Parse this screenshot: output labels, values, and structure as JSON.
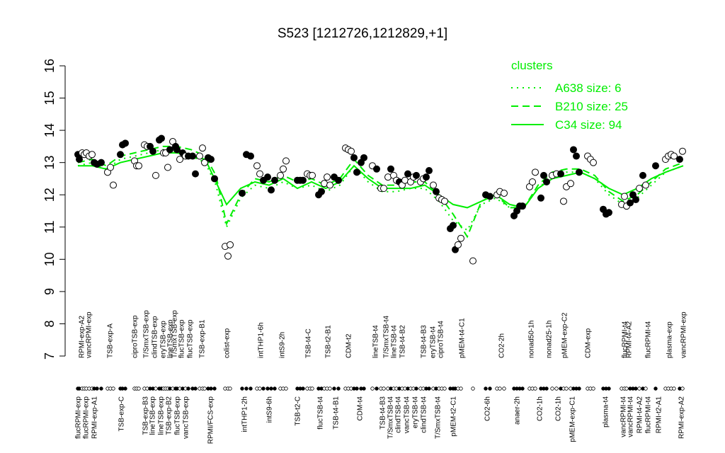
{
  "chart_data": {
    "type": "scatter",
    "title": "S523 [1212726,1212829,+1]",
    "xlim": [
      100,
      970
    ],
    "ylim": [
      7,
      16
    ],
    "yticks": [
      7,
      8,
      9,
      10,
      11,
      12,
      13,
      14,
      15,
      16
    ],
    "xticks": [
      {
        "value": 110,
        "label": "flucRPMI-exp"
      },
      {
        "value": 121,
        "label": "flucRPMI-exp"
      },
      {
        "value": 133,
        "label": "RPMI-exp-A1"
      },
      {
        "value": 171,
        "label": "TSB-exp-C"
      },
      {
        "value": 205,
        "label": "TSB-exp-B3"
      },
      {
        "value": 215,
        "label": "lineTSB-exp"
      },
      {
        "value": 227,
        "label": "lineTSB-exp"
      },
      {
        "value": 238,
        "label": "TSB-exp-B2"
      },
      {
        "value": 250,
        "label": "flucTSB-exp"
      },
      {
        "value": 262,
        "label": "vancTSB-exp"
      },
      {
        "value": 297,
        "label": "RPMI/FCS-exp"
      },
      {
        "value": 345,
        "label": "intTHP1-2h"
      },
      {
        "value": 380,
        "label": "intS9-6h"
      },
      {
        "value": 420,
        "label": "TSB-t2-C"
      },
      {
        "value": 452,
        "label": "flucTSB-t4"
      },
      {
        "value": 474,
        "label": "TSB-t4-B1"
      },
      {
        "value": 508,
        "label": "CDM-t4"
      },
      {
        "value": 540,
        "label": "TSB-t4-B3"
      },
      {
        "value": 551,
        "label": "T/SmxTSB-t4"
      },
      {
        "value": 562,
        "label": "clindTSB-t4"
      },
      {
        "value": 574,
        "label": "vancTSB-t4"
      },
      {
        "value": 586,
        "label": "eryTSB-t4"
      },
      {
        "value": 598,
        "label": "clindTSB-t4"
      },
      {
        "value": 618,
        "label": "T/SmxTSB-t4"
      },
      {
        "value": 640,
        "label": "pMEM-t2-C1"
      },
      {
        "value": 688,
        "label": "CO2-6h"
      },
      {
        "value": 730,
        "label": "anaer-2h"
      },
      {
        "value": 762,
        "label": "CO2-1h"
      },
      {
        "value": 788,
        "label": "CO2-1h"
      },
      {
        "value": 808,
        "label": "pMEM-exp-C1"
      },
      {
        "value": 855,
        "label": "plasma-t4"
      },
      {
        "value": 880,
        "label": "vancRPMI-t4"
      },
      {
        "value": 890,
        "label": "vancRPMI-t4"
      },
      {
        "value": 903,
        "label": "RPMI-t4-A2"
      },
      {
        "value": 915,
        "label": "flucRPMI-t4"
      },
      {
        "value": 930,
        "label": "RPMI-t2-A1"
      },
      {
        "value": 962,
        "label": "RPMI-exp-A2"
      }
    ],
    "x2ticks": [
      {
        "value": 115,
        "label": "RPMI-exp-A2"
      },
      {
        "value": 125,
        "label": "vancRPMI-exp"
      },
      {
        "value": 155,
        "label": "TSB-exp-A"
      },
      {
        "value": 190,
        "label": "ciproTSB-exp"
      },
      {
        "value": 206,
        "label": "T/SmxTSB-exp"
      },
      {
        "value": 218,
        "label": "clindTSB-exp"
      },
      {
        "value": 230,
        "label": "eryTSB-exp"
      },
      {
        "value": 240,
        "label": "lineTSB-exp"
      },
      {
        "value": 246,
        "label": "T/SmxTSB-exp"
      },
      {
        "value": 256,
        "label": "flucTSB-exp"
      },
      {
        "value": 268,
        "label": "flucTSB-exp"
      },
      {
        "value": 285,
        "label": "TSB-exp-B1"
      },
      {
        "value": 320,
        "label": "colist-exp"
      },
      {
        "value": 368,
        "label": "intTHP1-6h"
      },
      {
        "value": 398,
        "label": "intS9-2h"
      },
      {
        "value": 435,
        "label": "TSB-t4-C"
      },
      {
        "value": 463,
        "label": "TSB-t2-B1"
      },
      {
        "value": 492,
        "label": "CDM-t2"
      },
      {
        "value": 530,
        "label": "lineTSB-t4"
      },
      {
        "value": 545,
        "label": "T/SmxTSB-t4"
      },
      {
        "value": 556,
        "label": "lineTSB-t4"
      },
      {
        "value": 568,
        "label": "TSB-t4-B2"
      },
      {
        "value": 598,
        "label": "TSB-t4-B3"
      },
      {
        "value": 611,
        "label": "eryTSB-t4"
      },
      {
        "value": 622,
        "label": "ciproTSB-t4"
      },
      {
        "value": 652,
        "label": "pMEM-t4-C1"
      },
      {
        "value": 708,
        "label": "CO2-2h"
      },
      {
        "value": 750,
        "label": "nonad50-1h"
      },
      {
        "value": 775,
        "label": "nonad25-1h"
      },
      {
        "value": 797,
        "label": "pMEM-exp-C2"
      },
      {
        "value": 830,
        "label": "CDM-exp"
      },
      {
        "value": 882,
        "label": "flucRPMI-t4"
      },
      {
        "value": 888,
        "label": "RPMI-t4-A2"
      },
      {
        "value": 915,
        "label": "flucRPMI-t4"
      },
      {
        "value": 945,
        "label": "plasma-exp"
      },
      {
        "value": 965,
        "label": "vancRPMI-exp"
      }
    ],
    "points": {
      "x": [
        110,
        112,
        116,
        119,
        122,
        126,
        130,
        133,
        137,
        143,
        152,
        156,
        160,
        170,
        173,
        177,
        190,
        193,
        196,
        204,
        208,
        212,
        216,
        220,
        225,
        228,
        231,
        234,
        237,
        240,
        244,
        248,
        250,
        254,
        258,
        262,
        266,
        272,
        276,
        282,
        286,
        289,
        294,
        298,
        303,
        318,
        322,
        325,
        342,
        348,
        354,
        363,
        367,
        372,
        378,
        383,
        388,
        396,
        400,
        404,
        420,
        424,
        428,
        434,
        438,
        441,
        450,
        454,
        458,
        462,
        466,
        472,
        478,
        488,
        492,
        496,
        500,
        504,
        510,
        514,
        526,
        532,
        538,
        542,
        548,
        552,
        556,
        560,
        564,
        568,
        572,
        576,
        580,
        584,
        588,
        594,
        598,
        602,
        606,
        612,
        616,
        620,
        624,
        628,
        636,
        640,
        643,
        647,
        651,
        668,
        686,
        692,
        702,
        706,
        712,
        726,
        730,
        734,
        738,
        748,
        752,
        756,
        764,
        768,
        772,
        780,
        786,
        792,
        796,
        800,
        806,
        810,
        814,
        818,
        830,
        834,
        838,
        852,
        856,
        860,
        878,
        882,
        885,
        890,
        894,
        898,
        903,
        908,
        912,
        926,
        940,
        944,
        948,
        952,
        960,
        964
      ],
      "values": [
        13.25,
        13.1,
        13.3,
        13.25,
        13.3,
        13.2,
        13.25,
        13.0,
        12.95,
        13.0,
        12.7,
        12.85,
        12.3,
        13.25,
        13.55,
        13.6,
        13.05,
        12.9,
        12.9,
        13.55,
        13.5,
        13.5,
        13.35,
        12.6,
        13.7,
        13.75,
        13.3,
        13.3,
        12.85,
        13.4,
        13.65,
        13.5,
        13.4,
        13.1,
        13.3,
        13.2,
        13.2,
        13.2,
        12.65,
        13.2,
        13.45,
        13.0,
        13.15,
        13.1,
        12.5,
        10.4,
        10.1,
        10.45,
        12.05,
        13.25,
        13.2,
        12.9,
        12.65,
        12.45,
        12.55,
        12.15,
        12.45,
        12.6,
        12.8,
        13.05,
        12.45,
        12.45,
        12.45,
        12.65,
        12.6,
        12.6,
        12.0,
        12.1,
        12.35,
        12.55,
        12.3,
        12.55,
        12.45,
        13.45,
        13.4,
        13.35,
        13.15,
        12.7,
        13.0,
        13.15,
        12.9,
        12.8,
        12.2,
        12.2,
        12.55,
        12.8,
        12.6,
        12.45,
        12.4,
        12.3,
        12.45,
        12.65,
        12.4,
        12.55,
        12.6,
        12.4,
        12.5,
        12.55,
        12.75,
        12.3,
        12.1,
        11.9,
        11.85,
        11.8,
        10.95,
        11.05,
        10.3,
        10.45,
        10.65,
        9.95,
        12.0,
        11.95,
        12.0,
        12.1,
        12.05,
        11.35,
        11.5,
        11.65,
        11.65,
        12.25,
        12.4,
        12.7,
        11.9,
        12.6,
        12.4,
        12.6,
        12.65,
        12.65,
        11.8,
        12.25,
        12.35,
        13.4,
        13.2,
        12.7,
        13.2,
        13.1,
        13.0,
        11.55,
        11.4,
        11.45,
        11.7,
        11.95,
        11.65,
        11.75,
        12.0,
        11.85,
        12.2,
        12.6,
        12.3,
        12.9,
        13.1,
        13.2,
        13.25,
        13.2,
        13.1,
        13.35
      ],
      "fills": "bbwwwwwbbbwwwbbbwwwwwbbwbbwwwbwbbwbwbbbwwwbbbwwwbbbwwbbbbwwwbbbwwwbbwwwbbwwwbbbbwbwwwbwwbwwbwwbwwbbwbwwwbbbwwwbbwwwbbbbwwwbbbwwbwwwbbbwwwbbbwwwbbbwbwbwwwwbw"
    },
    "legend": "topright",
    "legend_title": "clusters",
    "clusters": {
      "x": [
        110,
        130,
        150,
        170,
        190,
        210,
        230,
        250,
        270,
        290,
        305,
        320,
        340,
        360,
        380,
        400,
        420,
        440,
        460,
        480,
        500,
        520,
        540,
        560,
        580,
        600,
        620,
        640,
        660,
        680,
        700,
        720,
        740,
        760,
        780,
        800,
        820,
        840,
        860,
        880,
        900,
        920,
        940,
        965
      ],
      "series": [
        {
          "name": "A638 size: 6",
          "color": "#00ee00",
          "dash": "dotted",
          "values": [
            12.9,
            13.0,
            12.8,
            13.1,
            13.2,
            13.3,
            13.4,
            13.3,
            13.2,
            13.0,
            12.3,
            11.0,
            11.9,
            12.3,
            12.2,
            12.4,
            12.2,
            12.3,
            12.1,
            12.3,
            12.9,
            12.4,
            12.1,
            12.1,
            12.2,
            12.2,
            11.8,
            11.2,
            10.9,
            11.7,
            11.9,
            11.6,
            11.6,
            12.2,
            12.6,
            12.7,
            12.7,
            12.5,
            12.0,
            11.7,
            11.9,
            12.3,
            12.7,
            12.9
          ]
        },
        {
          "name": "B210 size: 25",
          "color": "#00ee00",
          "dash": "dashed",
          "values": [
            13.0,
            13.1,
            12.9,
            13.2,
            13.3,
            13.4,
            13.5,
            13.5,
            13.4,
            13.2,
            12.6,
            11.1,
            12.0,
            12.5,
            12.4,
            12.6,
            12.4,
            12.5,
            12.3,
            12.5,
            13.1,
            12.6,
            12.3,
            12.3,
            12.4,
            12.4,
            12.0,
            11.4,
            10.7,
            11.8,
            12.0,
            11.6,
            11.6,
            12.3,
            12.7,
            12.8,
            12.8,
            12.6,
            12.1,
            11.8,
            12.0,
            12.4,
            12.8,
            13.0
          ]
        },
        {
          "name": "C34 size: 94",
          "color": "#00ee00",
          "dash": "solid",
          "values": [
            12.9,
            12.9,
            12.8,
            13.0,
            13.1,
            13.2,
            13.3,
            13.3,
            13.2,
            13.1,
            12.4,
            11.7,
            12.2,
            12.4,
            12.3,
            12.5,
            12.2,
            12.4,
            12.2,
            12.4,
            12.9,
            12.5,
            12.2,
            12.2,
            12.2,
            12.3,
            12.0,
            11.7,
            11.6,
            11.8,
            12.0,
            11.7,
            11.6,
            12.2,
            12.5,
            12.6,
            12.7,
            12.5,
            12.2,
            12.0,
            12.2,
            12.5,
            12.7,
            12.9
          ]
        }
      ]
    }
  }
}
